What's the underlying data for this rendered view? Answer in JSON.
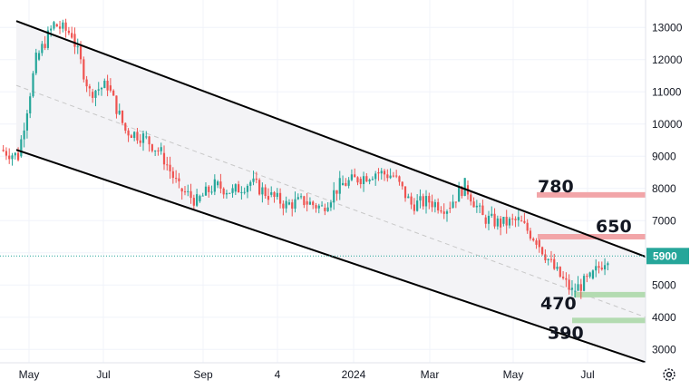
{
  "chart_data": {
    "type": "candlestick",
    "y_ticks": [
      "13000",
      "12000",
      "11000",
      "10000",
      "9000",
      "8000",
      "7000",
      "6000",
      "5000",
      "4000",
      "3000"
    ],
    "x_ticks": [
      "May",
      "Jul",
      "Sep",
      "4",
      "2024",
      "Mar",
      "May",
      "Jul"
    ],
    "ylim": [
      2500,
      13500
    ],
    "current_price": 5900,
    "current_price_label": "5900",
    "levels": [
      {
        "label": "780",
        "value": 7800,
        "kind": "resistance",
        "color": "#f2a5a8"
      },
      {
        "label": "650",
        "value": 6500,
        "kind": "resistance",
        "color": "#f2a5a8"
      },
      {
        "label": "470",
        "value": 4700,
        "kind": "support",
        "color": "#b3dbb1"
      },
      {
        "label": "390",
        "value": 3900,
        "kind": "support",
        "color": "#b3dbb1"
      }
    ],
    "channel": {
      "upper": [
        {
          "x": "Apr 2023",
          "y": 13200
        },
        {
          "x": "Aug 2024",
          "y": 5900
        }
      ],
      "lower": [
        {
          "x": "Apr 2023",
          "y": 9200
        },
        {
          "x": "Aug 2024",
          "y": 2600
        }
      ],
      "fill": "#f3f3f6"
    },
    "trend_path": [
      [
        9200,
        9200
      ],
      [
        9400,
        9000
      ],
      [
        10800,
        12000
      ],
      [
        11800,
        13100
      ],
      [
        12400,
        12800
      ],
      [
        11200,
        11000
      ],
      [
        11300,
        11200
      ],
      [
        10400,
        9800
      ],
      [
        9600,
        9600
      ],
      [
        8800,
        9100
      ],
      [
        8200,
        8000
      ],
      [
        7800,
        7600
      ],
      [
        8100,
        8100
      ],
      [
        7400,
        7900
      ],
      [
        8500,
        8200
      ],
      [
        8100,
        7800
      ],
      [
        7600,
        7500
      ],
      [
        7700,
        7600
      ],
      [
        7300,
        7400
      ],
      [
        8000,
        8100
      ],
      [
        8200,
        8300
      ],
      [
        7900,
        8500
      ],
      [
        8400,
        8400
      ],
      [
        7600,
        7500
      ],
      [
        7400,
        7600
      ],
      [
        7500,
        7400
      ],
      [
        7800,
        8100
      ],
      [
        7400,
        7100
      ],
      [
        7100,
        6900
      ],
      [
        7200,
        7000
      ],
      [
        6600,
        6400
      ],
      [
        6100,
        5500
      ],
      [
        5000,
        4800
      ],
      [
        4900,
        5200
      ],
      [
        5700,
        5900
      ]
    ],
    "colors": {
      "up": "#26a69a",
      "down": "#ef5350",
      "channel_line": "#000000",
      "dash": "#c8c8c8",
      "price_dotted": "#26a69a"
    }
  }
}
